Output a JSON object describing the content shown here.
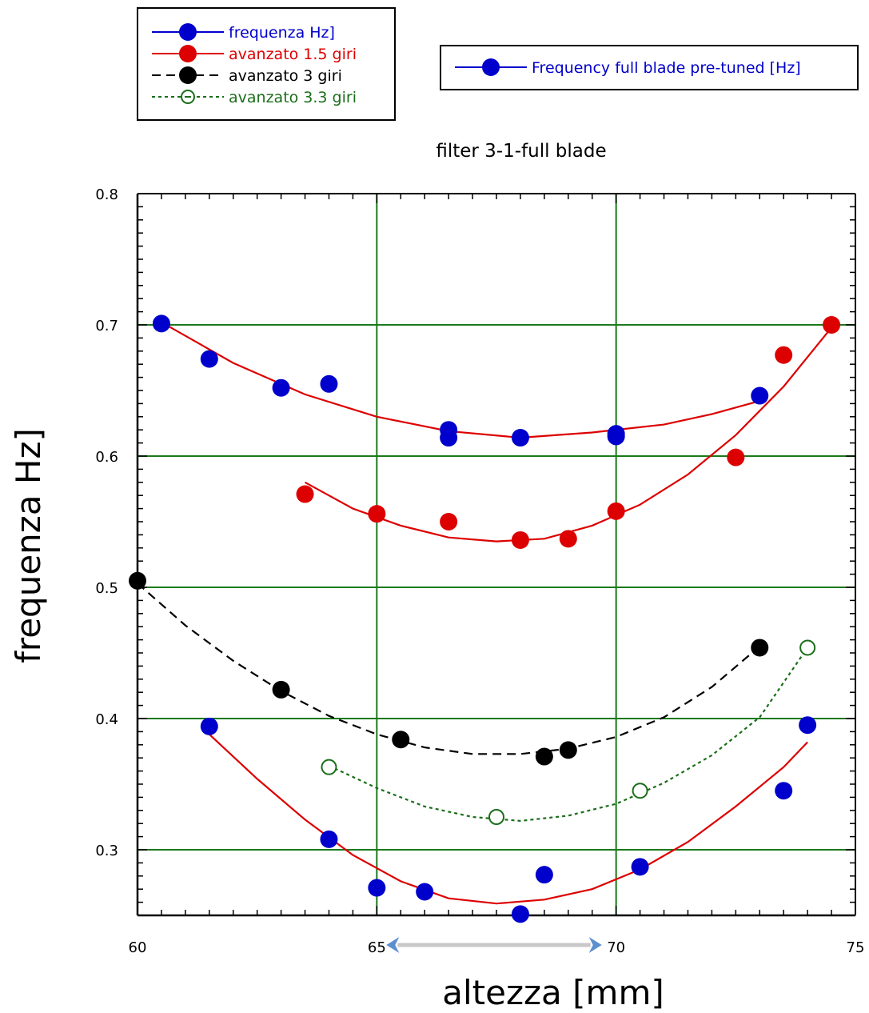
{
  "chart_data": {
    "type": "scatter",
    "title": "filter   3-1-full   blade",
    "xlabel": "altezza [mm]",
    "ylabel": "frequenza Hz]",
    "xlim": [
      60,
      75
    ],
    "ylim": [
      0.25,
      0.8
    ],
    "x_ticks": [
      "60",
      "65",
      "70",
      "75"
    ],
    "y_ticks": [
      "0.3",
      "0.4",
      "0.5",
      "0.6",
      "0.7",
      "0.8"
    ],
    "grid": true,
    "grid_color": "#1a7a1a",
    "arrow_color": "#5b8fd0",
    "arrow_range": [
      65.2,
      69.7
    ],
    "legend_left": {
      "placement": "top-left",
      "entries": [
        {
          "label": "frequenza Hz]",
          "color": "#0000cc",
          "marker": "filled",
          "line": "solid"
        },
        {
          "label": "avanzato 1.5 giri",
          "color": "#dd0000",
          "marker": "filled",
          "line": "solid"
        },
        {
          "label": "avanzato 3 giri",
          "color": "#000000",
          "marker": "filled",
          "line": "dashed"
        },
        {
          "label": "avanzato 3.3 giri",
          "color": "#1a6e1a",
          "marker": "open",
          "line": "dotted"
        }
      ]
    },
    "legend_right": {
      "placement": "top-right",
      "entries": [
        {
          "label": "Frequency full blade pre-tuned [Hz]",
          "color": "#0000cc",
          "marker": "filled",
          "line": "solid"
        }
      ]
    },
    "series": [
      {
        "name": "frequenza Hz]",
        "color": "#0000cc",
        "fit_color": "#dd0000",
        "marker": "filled",
        "fit_style": "solid",
        "points": [
          [
            60.5,
            0.701
          ],
          [
            61.5,
            0.674
          ],
          [
            63,
            0.652
          ],
          [
            64,
            0.655
          ],
          [
            66.5,
            0.62
          ],
          [
            66.5,
            0.614
          ],
          [
            68,
            0.614
          ],
          [
            70,
            0.617
          ],
          [
            70,
            0.615
          ],
          [
            73,
            0.646
          ]
        ],
        "fit": [
          [
            60.5,
            0.702
          ],
          [
            62,
            0.671
          ],
          [
            63.5,
            0.647
          ],
          [
            65,
            0.63
          ],
          [
            66.5,
            0.619
          ],
          [
            68,
            0.614
          ],
          [
            69.5,
            0.618
          ],
          [
            71,
            0.624
          ],
          [
            72,
            0.632
          ],
          [
            73,
            0.642
          ]
        ]
      },
      {
        "name": "avanzato 1.5 giri",
        "color": "#dd0000",
        "fit_color": "#dd0000",
        "marker": "filled",
        "fit_style": "solid",
        "points": [
          [
            63.5,
            0.571
          ],
          [
            65,
            0.556
          ],
          [
            66.5,
            0.55
          ],
          [
            68,
            0.536
          ],
          [
            69,
            0.537
          ],
          [
            70,
            0.558
          ],
          [
            72.5,
            0.599
          ],
          [
            73.5,
            0.677
          ],
          [
            74.5,
            0.7
          ]
        ],
        "fit": [
          [
            63.5,
            0.58
          ],
          [
            64.5,
            0.56
          ],
          [
            65.5,
            0.547
          ],
          [
            66.5,
            0.538
          ],
          [
            67.5,
            0.535
          ],
          [
            68.5,
            0.537
          ],
          [
            69.5,
            0.547
          ],
          [
            70.5,
            0.563
          ],
          [
            71.5,
            0.586
          ],
          [
            72.5,
            0.616
          ],
          [
            73.5,
            0.653
          ],
          [
            74.5,
            0.698
          ]
        ]
      },
      {
        "name": "avanzato 3 giri",
        "color": "#000000",
        "fit_color": "#000000",
        "marker": "filled",
        "fit_style": "dashed",
        "points": [
          [
            60,
            0.505
          ],
          [
            63,
            0.422
          ],
          [
            65.5,
            0.384
          ],
          [
            68.5,
            0.371
          ],
          [
            69,
            0.376
          ],
          [
            73,
            0.454
          ]
        ],
        "fit": [
          [
            60,
            0.503
          ],
          [
            61,
            0.471
          ],
          [
            62,
            0.444
          ],
          [
            63,
            0.421
          ],
          [
            64,
            0.402
          ],
          [
            65,
            0.388
          ],
          [
            66,
            0.378
          ],
          [
            67,
            0.373
          ],
          [
            68,
            0.373
          ],
          [
            69,
            0.377
          ],
          [
            70,
            0.386
          ],
          [
            71,
            0.401
          ],
          [
            72,
            0.424
          ],
          [
            73,
            0.455
          ]
        ]
      },
      {
        "name": "avanzato 3.3 giri",
        "color": "#1a6e1a",
        "fit_color": "#1a6e1a",
        "marker": "open",
        "fit_style": "dotted",
        "points": [
          [
            64,
            0.363
          ],
          [
            67.5,
            0.325
          ],
          [
            70.5,
            0.345
          ],
          [
            74,
            0.454
          ]
        ],
        "fit": [
          [
            64,
            0.364
          ],
          [
            65,
            0.347
          ],
          [
            66,
            0.333
          ],
          [
            67,
            0.325
          ],
          [
            68,
            0.322
          ],
          [
            69,
            0.326
          ],
          [
            70,
            0.335
          ],
          [
            71,
            0.351
          ],
          [
            72,
            0.372
          ],
          [
            73,
            0.401
          ],
          [
            74,
            0.454
          ]
        ]
      },
      {
        "name": "Frequency full blade pre-tuned [Hz]",
        "color": "#0000cc",
        "fit_color": "#dd0000",
        "marker": "filled",
        "fit_style": "solid",
        "points": [
          [
            61.5,
            0.394
          ],
          [
            64,
            0.308
          ],
          [
            65,
            0.271
          ],
          [
            66,
            0.268
          ],
          [
            68,
            0.251
          ],
          [
            68.5,
            0.281
          ],
          [
            70.5,
            0.287
          ],
          [
            73.5,
            0.345
          ],
          [
            74,
            0.395
          ]
        ],
        "fit": [
          [
            61.5,
            0.388
          ],
          [
            62.5,
            0.354
          ],
          [
            63.5,
            0.323
          ],
          [
            64.5,
            0.296
          ],
          [
            65.5,
            0.276
          ],
          [
            66.5,
            0.263
          ],
          [
            67.5,
            0.259
          ],
          [
            68.5,
            0.262
          ],
          [
            69.5,
            0.27
          ],
          [
            70.5,
            0.285
          ],
          [
            71.5,
            0.306
          ],
          [
            72.5,
            0.333
          ],
          [
            73.5,
            0.363
          ],
          [
            74,
            0.382
          ]
        ]
      }
    ]
  }
}
